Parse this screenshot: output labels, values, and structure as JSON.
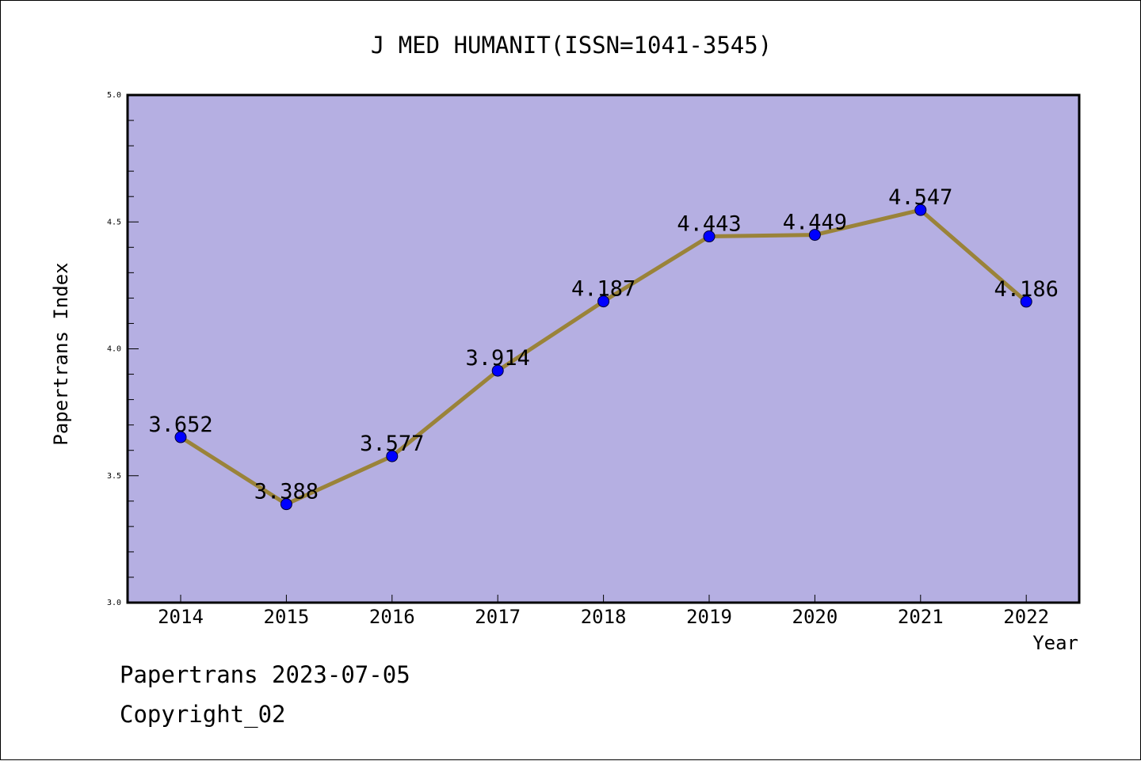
{
  "footer": {
    "line1": "Papertrans 2023-07-05",
    "line2": "Copyright_02"
  },
  "colors": {
    "plot_background": "#b5afe2",
    "line": "#9a8339",
    "marker": "#0000ff",
    "axis": "#000000"
  },
  "chart_data": {
    "type": "line",
    "title": "J MED HUMANIT(ISSN=1041-3545)",
    "xlabel": "Year",
    "ylabel": "Papertrans Index",
    "categories": [
      "2014",
      "2015",
      "2016",
      "2017",
      "2018",
      "2019",
      "2020",
      "2021",
      "2022"
    ],
    "series": [
      {
        "values": [
          3.652,
          3.388,
          3.577,
          3.914,
          4.187,
          4.443,
          4.449,
          4.547,
          4.186
        ],
        "labels": [
          "3.652",
          "3.388",
          "3.577",
          "3.914",
          "4.187",
          "4.443",
          "4.449",
          "4.547",
          "4.186"
        ]
      }
    ],
    "ylim": [
      3.0,
      5.0
    ],
    "yticks": [
      "3.0",
      "3.5",
      "4.0",
      "4.5",
      "5.0"
    ],
    "grid": false,
    "legend": "none"
  }
}
